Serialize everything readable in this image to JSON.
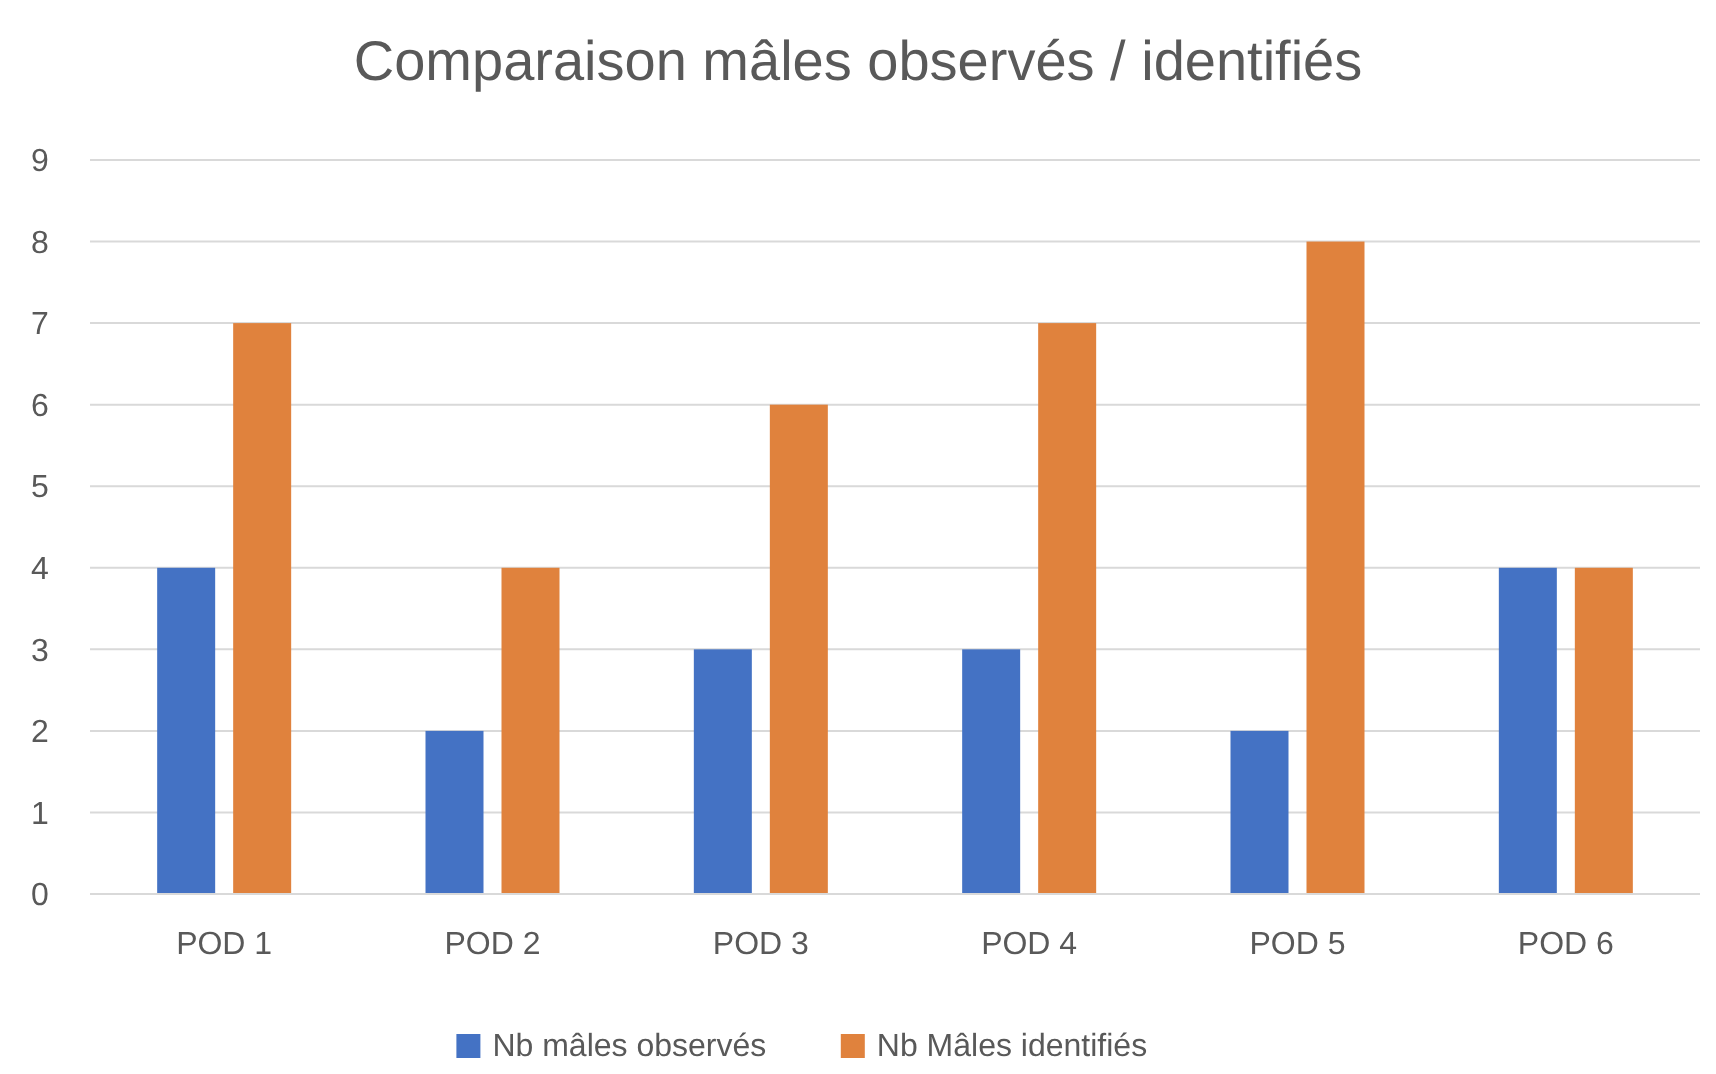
{
  "chart_data": {
    "type": "bar",
    "title": "Comparaison mâles observés / identifiés",
    "categories": [
      "POD 1",
      "POD 2",
      "POD 3",
      "POD 4",
      "POD 5",
      "POD 6"
    ],
    "series": [
      {
        "name": "Nb mâles observés",
        "color": "#4472c4",
        "values": [
          4,
          2,
          3,
          3,
          2,
          4
        ]
      },
      {
        "name": "Nb Mâles identifiés",
        "color": "#e0823d",
        "values": [
          7,
          4,
          6,
          7,
          8,
          4
        ]
      }
    ],
    "ylim": [
      0,
      9
    ],
    "yticks": [
      0,
      1,
      2,
      3,
      4,
      5,
      6,
      7,
      8,
      9
    ],
    "grid": "y",
    "legend": "bottom"
  }
}
